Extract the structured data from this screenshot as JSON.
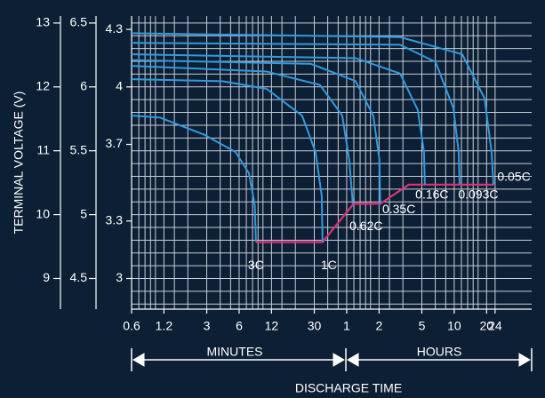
{
  "chart_data": {
    "type": "line",
    "ylabel": "TERMINAL VOLTAGE (V)",
    "xlabel": "DISCHARGE TIME",
    "x_groups": [
      {
        "label": "MINUTES"
      },
      {
        "label": "HOURS"
      }
    ],
    "xscale": "log",
    "xlim": [
      0.6,
      3150
    ],
    "xticks": [
      0.6,
      1.2,
      3,
      6,
      12,
      30,
      {
        "value": 60,
        "label": "1"
      },
      {
        "value": 120,
        "label": "2"
      },
      {
        "value": 300,
        "label": "5"
      },
      {
        "value": 600,
        "label": "10"
      },
      {
        "value": 1200,
        "label": "20"
      },
      {
        "value": 1440,
        "label": "24"
      }
    ],
    "xgrid": [
      0.6,
      0.7,
      0.8,
      0.9,
      1,
      1.2,
      1.5,
      2,
      3,
      4,
      5,
      6,
      7,
      8,
      9,
      10,
      12,
      15,
      20,
      30,
      40,
      50,
      60,
      70,
      80,
      90,
      100,
      120,
      150,
      200,
      300,
      400,
      500,
      600,
      700,
      800,
      900,
      1000,
      1200,
      1440
    ],
    "ylim": [
      2.84,
      4.37
    ],
    "yticks": [
      3.0,
      3.3,
      3.7,
      4.0,
      4.3
    ],
    "y2lim": [
      4.26,
      6.555
    ],
    "y2ticks": [
      4.5,
      5.0,
      5.5,
      6.0,
      6.5
    ],
    "y2grid": [
      4.3,
      4.4,
      4.5,
      4.6,
      4.7,
      4.8,
      4.9,
      5.0,
      5.1,
      5.2,
      5.3,
      5.4,
      5.5,
      5.6,
      5.7,
      5.8,
      5.9,
      6.0,
      6.1,
      6.2,
      6.3,
      6.4,
      6.5
    ],
    "y3lim": [
      8.52,
      13.11
    ],
    "y3ticks": [
      9,
      10,
      11,
      12,
      13
    ],
    "grid": true,
    "series": [
      {
        "name": "3C",
        "color": "#2f9be0",
        "x": [
          0.6,
          1.1,
          2.85,
          5.56,
          7.4,
          8.4,
          8.6
        ],
        "values": [
          3.85,
          3.84,
          3.75,
          3.66,
          3.55,
          3.38,
          3.19
        ]
      },
      {
        "name": "1C",
        "color": "#2f9be0",
        "x": [
          0.6,
          4.17,
          10.8,
          23.1,
          30.8,
          35.2,
          35.8
        ],
        "values": [
          4.04,
          4.03,
          3.99,
          3.85,
          3.66,
          3.43,
          3.19
        ]
      },
      {
        "name": "0.62C",
        "color": "#2f9be0",
        "x": [
          0.6,
          10.8,
          33.9,
          54.6,
          63.4,
          68.4
        ],
        "values": [
          4.11,
          4.08,
          4.01,
          3.85,
          3.62,
          3.39
        ]
      },
      {
        "name": "0.35C",
        "color": "#2f9be0",
        "x": [
          0.6,
          28,
          72.6,
          106,
          121,
          123
        ],
        "values": [
          4.14,
          4.12,
          4.03,
          3.85,
          3.62,
          3.39
        ]
      },
      {
        "name": "0.16C",
        "color": "#2f9be0",
        "x": [
          0.6,
          72.6,
          188,
          275,
          314,
          320
        ],
        "values": [
          4.17,
          4.15,
          4.07,
          3.88,
          3.66,
          3.49
        ]
      },
      {
        "name": "0.093C",
        "color": "#2f9be0",
        "x": [
          0.6,
          188,
          402,
          589,
          660,
          673
        ],
        "values": [
          4.23,
          4.22,
          4.13,
          3.89,
          3.66,
          3.49
        ]
      },
      {
        "name": "0.05C",
        "color": "#2f9be0",
        "x": [
          0.6,
          188,
          712,
          1149,
          1335,
          1390
        ],
        "values": [
          4.28,
          4.26,
          4.17,
          3.94,
          3.66,
          3.49
        ]
      }
    ],
    "cutoff": {
      "color": "#e0307a",
      "x": [
        8.6,
        35.8,
        69.6,
        123,
        227,
        1390
      ],
      "values": [
        3.19,
        3.19,
        3.39,
        3.39,
        3.49,
        3.49
      ]
    }
  }
}
